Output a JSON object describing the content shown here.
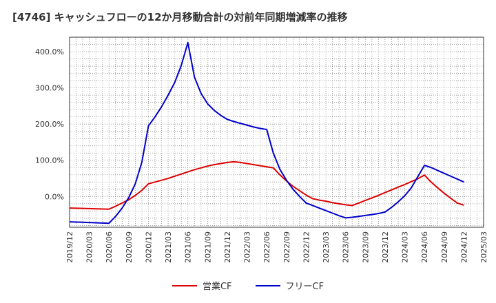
{
  "title": "[4746]  キャッシュフローの12か月移動合計の対前年同期増減率の推移",
  "chart_data": {
    "type": "line",
    "title": "[4746]  キャッシュフローの12か月移動合計の対前年同期増減率の推移",
    "xlabel": "",
    "ylabel": "",
    "ylim": [
      -85,
      440
    ],
    "y_ticks": [
      0,
      100,
      200,
      300,
      400
    ],
    "y_tick_labels": [
      "0.0%",
      "100.0%",
      "200.0%",
      "300.0%",
      "400.0%"
    ],
    "x_tick_labels": [
      "2019/12",
      "2020/03",
      "2020/06",
      "2020/09",
      "2020/12",
      "2021/03",
      "2021/06",
      "2021/09",
      "2021/12",
      "2022/03",
      "2022/06",
      "2022/09",
      "2022/12",
      "2023/03",
      "2023/06",
      "2023/09",
      "2023/12",
      "2024/03",
      "2024/06",
      "2024/09",
      "2024/12",
      "2025/03"
    ],
    "grid": true,
    "legend_position": "bottom",
    "x": [
      "2019/12",
      "2020/01",
      "2020/02",
      "2020/03",
      "2020/04",
      "2020/05",
      "2020/06",
      "2020/07",
      "2020/08",
      "2020/09",
      "2020/10",
      "2020/11",
      "2020/12",
      "2021/01",
      "2021/02",
      "2021/03",
      "2021/04",
      "2021/05",
      "2021/06",
      "2021/07",
      "2021/08",
      "2021/09",
      "2021/10",
      "2021/11",
      "2021/12",
      "2022/01",
      "2022/02",
      "2022/03",
      "2022/04",
      "2022/05",
      "2022/06",
      "2022/07",
      "2022/08",
      "2022/09",
      "2022/10",
      "2022/11",
      "2022/12",
      "2023/01",
      "2023/02",
      "2023/03",
      "2023/04",
      "2023/05",
      "2023/06",
      "2023/07",
      "2023/08",
      "2023/09",
      "2023/10",
      "2023/11",
      "2023/12",
      "2024/01",
      "2024/02",
      "2024/03",
      "2024/04",
      "2024/05",
      "2024/06",
      "2024/07",
      "2024/08",
      "2024/09",
      "2024/10",
      "2024/11",
      "2024/12"
    ],
    "series": [
      {
        "name": "営業CF",
        "color": "#dd0000",
        "values": [
          -32,
          -32.5,
          -33,
          -33.5,
          -34,
          -34.5,
          -35,
          -27,
          -18,
          -9,
          3,
          17,
          35,
          40,
          45,
          50,
          56,
          62,
          68,
          74,
          79,
          84,
          88,
          91,
          94,
          96,
          94,
          91,
          88,
          85,
          82,
          79,
          60,
          43,
          28,
          16,
          4,
          -6,
          -10,
          -13,
          -17,
          -20,
          -23,
          -25,
          -18,
          -11,
          -4,
          3,
          11,
          18,
          26,
          33,
          41,
          49,
          59,
          40,
          24,
          9,
          -5,
          -18,
          -24
        ]
      },
      {
        "name": "フリーCF",
        "color": "#0000cc",
        "values": [
          -70,
          -70.7,
          -71.3,
          -72,
          -72.7,
          -73.3,
          -74,
          -55,
          -32,
          -3,
          35,
          95,
          195,
          220,
          248,
          280,
          315,
          362,
          425,
          330,
          285,
          256,
          238,
          224,
          213,
          207,
          202,
          197,
          192,
          188,
          185,
          120,
          75,
          45,
          20,
          0,
          -18,
          -25,
          -32,
          -39,
          -46,
          -53,
          -59,
          -57.5,
          -55,
          -52.5,
          -50,
          -47,
          -43,
          -30,
          -15,
          2,
          24,
          55,
          86,
          80,
          72,
          64,
          56,
          48,
          40
        ]
      }
    ]
  }
}
